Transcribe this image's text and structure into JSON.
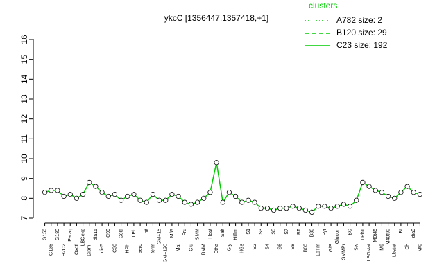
{
  "chart_data": {
    "type": "line",
    "title": "ykcC [1356447,1357418,+1]",
    "legend_title": "clusters",
    "categories": [
      "G150",
      "G135",
      "G180",
      "H2O2",
      "Paraq",
      "Oxctl",
      "LBGexp",
      "Diami",
      "dia15",
      "dia5",
      "C90",
      "C30",
      "Cold",
      "HPh",
      "LPh",
      "aero",
      "nit",
      "ferm",
      "GM+15",
      "GM+120",
      "M/G",
      "Mal",
      "Fru",
      "Glu",
      "SMM",
      "BMM",
      "Heat",
      "Etha",
      "Salt",
      "Gly",
      "HiTm",
      "HGs",
      "S1",
      "S2",
      "S3",
      "S4",
      "S5",
      "S6",
      "S7",
      "S8",
      "BT",
      "B60",
      "B36",
      "LoTm",
      "Pyr",
      "G/S",
      "Glucon",
      "SMMPr",
      "BC",
      "Sw",
      "LPhT",
      "LBGstat",
      "M0t45",
      "M9",
      "M40t90",
      "Lbstat",
      "BI",
      "Sh",
      "dia0",
      "Mt0"
    ],
    "series": [
      {
        "name": "A782 size: 2",
        "color": "#00cc00",
        "dash": "1,3",
        "values": [
          null,
          null,
          null,
          null,
          null,
          null,
          null,
          null,
          null,
          null,
          null,
          null,
          null,
          null,
          null,
          null,
          null,
          null,
          null,
          null,
          null,
          null,
          null,
          null,
          null,
          null,
          null,
          null,
          null,
          null,
          null,
          null,
          null,
          null,
          null,
          null,
          null,
          null,
          null,
          null,
          null,
          null,
          null,
          null,
          null,
          null,
          null,
          null,
          null,
          null,
          null,
          null,
          null,
          null,
          null,
          null,
          null,
          null,
          null,
          null
        ]
      },
      {
        "name": "B120 size: 29",
        "color": "#00cc00",
        "dash": "6,4",
        "values": [
          null,
          null,
          null,
          null,
          null,
          null,
          null,
          null,
          null,
          null,
          null,
          null,
          null,
          null,
          null,
          null,
          null,
          null,
          null,
          null,
          null,
          null,
          null,
          null,
          null,
          null,
          null,
          null,
          null,
          null,
          null,
          null,
          null,
          null,
          null,
          null,
          null,
          null,
          null,
          null,
          null,
          null,
          null,
          null,
          null,
          null,
          null,
          null,
          null,
          null,
          null,
          null,
          null,
          null,
          null,
          null,
          null,
          null,
          null,
          null
        ]
      },
      {
        "name": "C23 size: 192",
        "color": "#00cc00",
        "dash": "none",
        "values": [
          8.3,
          8.4,
          8.4,
          8.1,
          8.2,
          8.0,
          8.2,
          8.8,
          8.6,
          8.3,
          8.1,
          8.2,
          7.9,
          8.1,
          8.2,
          7.9,
          7.8,
          8.2,
          7.9,
          7.9,
          8.2,
          8.1,
          7.8,
          7.7,
          7.8,
          8.0,
          8.3,
          9.8,
          7.8,
          8.3,
          8.1,
          7.8,
          7.9,
          7.8,
          7.5,
          7.5,
          7.4,
          7.5,
          7.5,
          7.6,
          7.5,
          7.4,
          7.3,
          7.6,
          7.6,
          7.5,
          7.6,
          7.7,
          7.6,
          7.9,
          8.8,
          8.6,
          8.4,
          8.3,
          8.1,
          8.0,
          8.3,
          8.6,
          8.3,
          8.2
        ]
      }
    ],
    "ylim": [
      7,
      16
    ],
    "yticks": [
      7,
      8,
      9,
      10,
      11,
      12,
      13,
      14,
      15,
      16
    ]
  }
}
